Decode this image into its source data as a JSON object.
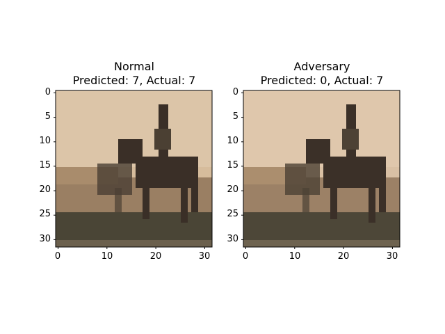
{
  "panels": [
    {
      "title_line1": "Normal",
      "title_line2": "Predicted: 7, Actual: 7",
      "xticks": [
        "0",
        "10",
        "20",
        "30"
      ],
      "yticks": [
        "0",
        "5",
        "10",
        "15",
        "20",
        "25",
        "30"
      ],
      "colors": {
        "sky": "#d6bc9c",
        "hill": "#9a7f63",
        "ground": "#4a4536",
        "horse": "#3a2f27"
      }
    },
    {
      "title_line1": "Adversary",
      "title_line2": "Predicted: 0, Actual: 7",
      "xticks": [
        "0",
        "10",
        "20",
        "30"
      ],
      "yticks": [
        "0",
        "5",
        "10",
        "15",
        "20",
        "25",
        "30"
      ],
      "colors": {
        "sky": "#d9c0a4",
        "hill": "#9c8166",
        "ground": "#4d4738",
        "horse": "#3b3028"
      }
    }
  ]
}
